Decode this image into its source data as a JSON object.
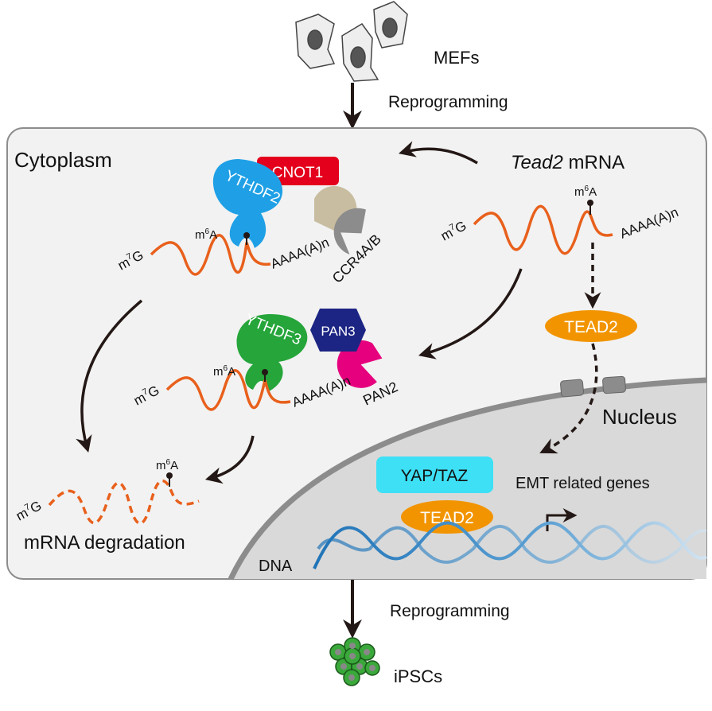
{
  "top": {
    "cells_label": "MEFs",
    "step1": "Reprogramming"
  },
  "bottom": {
    "step2": "Reprogramming",
    "cells_label": "iPSCs"
  },
  "cytoplasm": {
    "title": "Cytoplasm",
    "tead2_mrna": {
      "gene": "Tead2",
      "suffix": " mRNA"
    },
    "m7g": {
      "base": "m",
      "sup": "7",
      "rest": "G"
    },
    "m6a": {
      "base": "m",
      "sup": "6",
      "rest": "A"
    },
    "polya": "AAAA(A)n",
    "proteins": {
      "ythdf2": "YTHDF2",
      "cnot1": "CNOT1",
      "ccr4": "CCR4A/B",
      "ythdf3": "YTHDF3",
      "pan3": "PAN3",
      "pan2": "PAN2",
      "tead2": "TEAD2"
    },
    "degradation": "mRNA degradation"
  },
  "nucleus": {
    "title": "Nucleus",
    "yaptaz": "YAP/TAZ",
    "tead2": "TEAD2",
    "genes": "EMT related genes",
    "dna": "DNA"
  },
  "colors": {
    "mrna": "#e8601c",
    "ythdf2": "#1fa0e6",
    "cnot1": "#e4001c",
    "ccr4_tan": "#c8bda0",
    "ccr4_gray": "#8c8c8c",
    "ythdf3": "#25a53a",
    "pan3": "#1c2583",
    "pan2": "#e6007e",
    "tead2": "#f29400",
    "yaptaz": "#3de0f5",
    "dna": "#2a7fc0"
  }
}
